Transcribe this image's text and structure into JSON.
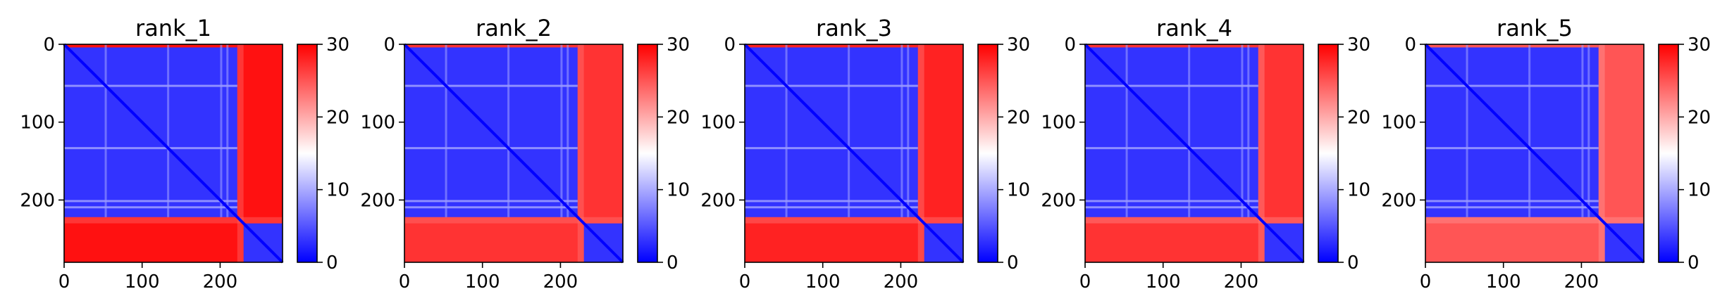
{
  "figure": {
    "colormap": {
      "low": "#0000ff",
      "mid": "#ffffff",
      "high": "#ff0000"
    },
    "value_range": [
      0,
      30
    ]
  },
  "chart_data": [
    {
      "type": "heatmap",
      "title": "rank_1",
      "x_ticks": [
        0,
        100,
        200
      ],
      "y_ticks": [
        0,
        100,
        200
      ],
      "xlim": [
        0,
        280
      ],
      "ylim": [
        280,
        0
      ],
      "colorbar": {
        "ticks": [
          0,
          10,
          20,
          30
        ],
        "range": [
          0,
          30
        ]
      },
      "matrix_size": 280,
      "domain_boundary": 222,
      "block_values": {
        "domain1": 3,
        "domain2": 3,
        "offdiag": 29
      },
      "linker_offdiag_value": 25
    },
    {
      "type": "heatmap",
      "title": "rank_2",
      "x_ticks": [
        0,
        100,
        200
      ],
      "y_ticks": [
        0,
        100,
        200
      ],
      "xlim": [
        0,
        280
      ],
      "ylim": [
        280,
        0
      ],
      "colorbar": {
        "ticks": [
          0,
          10,
          20,
          30
        ],
        "range": [
          0,
          30
        ]
      },
      "matrix_size": 280,
      "domain_boundary": 222,
      "block_values": {
        "domain1": 3,
        "domain2": 3,
        "offdiag": 27
      },
      "linker_offdiag_value": 24
    },
    {
      "type": "heatmap",
      "title": "rank_3",
      "x_ticks": [
        0,
        100,
        200
      ],
      "y_ticks": [
        0,
        100,
        200
      ],
      "xlim": [
        0,
        280
      ],
      "ylim": [
        280,
        0
      ],
      "colorbar": {
        "ticks": [
          0,
          10,
          20,
          30
        ],
        "range": [
          0,
          30
        ]
      },
      "matrix_size": 280,
      "domain_boundary": 222,
      "block_values": {
        "domain1": 3,
        "domain2": 3,
        "offdiag": 28
      },
      "linker_offdiag_value": 24
    },
    {
      "type": "heatmap",
      "title": "rank_4",
      "x_ticks": [
        0,
        100,
        200
      ],
      "y_ticks": [
        0,
        100,
        200
      ],
      "xlim": [
        0,
        280
      ],
      "ylim": [
        280,
        0
      ],
      "colorbar": {
        "ticks": [
          0,
          10,
          20,
          30
        ],
        "range": [
          0,
          30
        ]
      },
      "matrix_size": 280,
      "domain_boundary": 222,
      "block_values": {
        "domain1": 3,
        "domain2": 3,
        "offdiag": 27
      },
      "linker_offdiag_value": 23
    },
    {
      "type": "heatmap",
      "title": "rank_5",
      "x_ticks": [
        0,
        100,
        200
      ],
      "y_ticks": [
        0,
        100,
        200
      ],
      "xlim": [
        0,
        280
      ],
      "ylim": [
        280,
        0
      ],
      "colorbar": {
        "ticks": [
          0,
          10,
          20,
          30
        ],
        "range": [
          0,
          30
        ]
      },
      "matrix_size": 280,
      "domain_boundary": 222,
      "block_values": {
        "domain1": 3,
        "domain2": 3,
        "offdiag": 25
      },
      "linker_offdiag_value": 22
    }
  ]
}
